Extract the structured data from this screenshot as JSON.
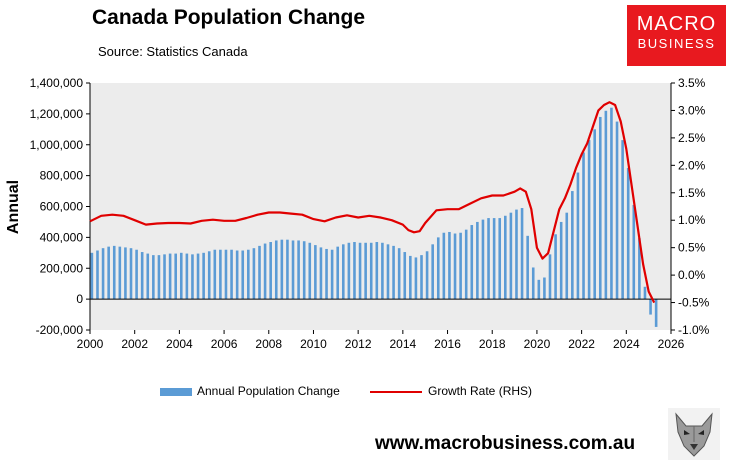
{
  "title": "Canada Population Change",
  "source": "Source: Statistics Canada",
  "logo": {
    "line1": "MACRO",
    "line2": "BUSINESS",
    "color": "#e8191f"
  },
  "website": "www.macrobusiness.com.au",
  "chart_data": {
    "type": "bar",
    "title": "Canada Population Change",
    "ylabel": "Annual",
    "y2label": "",
    "ylim": [
      -200000,
      1400000
    ],
    "y2lim": [
      -1.0,
      3.5
    ],
    "yticks": [
      "-200,000",
      "0",
      "200,000",
      "400,000",
      "600,000",
      "800,000",
      "1,000,000",
      "1,200,000",
      "1,400,000"
    ],
    "y2ticks": [
      "-1.0%",
      "-0.5%",
      "0.0%",
      "0.5%",
      "1.0%",
      "1.5%",
      "2.0%",
      "2.5%",
      "3.0%",
      "3.5%"
    ],
    "xlim": [
      2000,
      2026
    ],
    "xticks": [
      "2000",
      "2002",
      "2004",
      "2006",
      "2008",
      "2010",
      "2012",
      "2014",
      "2016",
      "2018",
      "2020",
      "2022",
      "2024",
      "2026"
    ],
    "grid": false,
    "legend_position": "bottom",
    "colors": {
      "bar": "#5b9bd5",
      "line": "#e00000",
      "plot_bg": "#ececec"
    },
    "series": [
      {
        "name": "Annual Population Change",
        "type": "bar",
        "x": [
          2000.0,
          2000.25,
          2000.5,
          2000.75,
          2001.0,
          2001.25,
          2001.5,
          2001.75,
          2002.0,
          2002.25,
          2002.5,
          2002.75,
          2003.0,
          2003.25,
          2003.5,
          2003.75,
          2004.0,
          2004.25,
          2004.5,
          2004.75,
          2005.0,
          2005.25,
          2005.5,
          2005.75,
          2006.0,
          2006.25,
          2006.5,
          2006.75,
          2007.0,
          2007.25,
          2007.5,
          2007.75,
          2008.0,
          2008.25,
          2008.5,
          2008.75,
          2009.0,
          2009.25,
          2009.5,
          2009.75,
          2010.0,
          2010.25,
          2010.5,
          2010.75,
          2011.0,
          2011.25,
          2011.5,
          2011.75,
          2012.0,
          2012.25,
          2012.5,
          2012.75,
          2013.0,
          2013.25,
          2013.5,
          2013.75,
          2014.0,
          2014.25,
          2014.5,
          2014.75,
          2015.0,
          2015.25,
          2015.5,
          2015.75,
          2016.0,
          2016.25,
          2016.5,
          2016.75,
          2017.0,
          2017.25,
          2017.5,
          2017.75,
          2018.0,
          2018.25,
          2018.5,
          2018.75,
          2019.0,
          2019.25,
          2019.5,
          2019.75,
          2020.0,
          2020.25,
          2020.5,
          2020.75,
          2021.0,
          2021.25,
          2021.5,
          2021.75,
          2022.0,
          2022.25,
          2022.5,
          2022.75,
          2023.0,
          2023.25,
          2023.5,
          2023.75,
          2024.0,
          2024.25,
          2024.5,
          2024.75,
          2025.0,
          2025.25
        ],
        "values": [
          300000,
          315000,
          330000,
          340000,
          345000,
          340000,
          335000,
          330000,
          320000,
          305000,
          295000,
          285000,
          285000,
          290000,
          295000,
          295000,
          300000,
          295000,
          290000,
          295000,
          300000,
          310000,
          320000,
          320000,
          320000,
          320000,
          315000,
          315000,
          320000,
          330000,
          345000,
          360000,
          370000,
          380000,
          385000,
          385000,
          380000,
          380000,
          375000,
          365000,
          350000,
          335000,
          325000,
          320000,
          340000,
          355000,
          365000,
          370000,
          365000,
          365000,
          365000,
          370000,
          365000,
          355000,
          345000,
          330000,
          305000,
          280000,
          270000,
          285000,
          310000,
          355000,
          400000,
          430000,
          435000,
          425000,
          430000,
          450000,
          480000,
          500000,
          515000,
          525000,
          525000,
          525000,
          540000,
          560000,
          580000,
          590000,
          410000,
          205000,
          125000,
          140000,
          290000,
          420000,
          500000,
          560000,
          700000,
          820000,
          950000,
          1030000,
          1100000,
          1180000,
          1220000,
          1240000,
          1150000,
          1030000,
          850000,
          610000,
          395000,
          80000,
          -100000,
          -180000
        ]
      },
      {
        "name": "Growth Rate (RHS)",
        "type": "line",
        "x": [
          2000.0,
          2000.5,
          2001.0,
          2001.5,
          2002.0,
          2002.5,
          2003.0,
          2003.5,
          2004.0,
          2004.5,
          2005.0,
          2005.5,
          2006.0,
          2006.5,
          2007.0,
          2007.5,
          2008.0,
          2008.5,
          2009.0,
          2009.5,
          2010.0,
          2010.5,
          2011.0,
          2011.5,
          2012.0,
          2012.5,
          2013.0,
          2013.5,
          2014.0,
          2014.25,
          2014.5,
          2014.75,
          2015.0,
          2015.5,
          2016.0,
          2016.5,
          2017.0,
          2017.5,
          2018.0,
          2018.5,
          2019.0,
          2019.25,
          2019.5,
          2019.75,
          2020.0,
          2020.25,
          2020.5,
          2020.75,
          2021.0,
          2021.25,
          2021.5,
          2021.75,
          2022.0,
          2022.25,
          2022.5,
          2022.75,
          2023.0,
          2023.25,
          2023.5,
          2023.75,
          2024.0,
          2024.25,
          2024.5,
          2024.75,
          2025.0,
          2025.25
        ],
        "values": [
          0.98,
          1.08,
          1.1,
          1.08,
          1.0,
          0.92,
          0.94,
          0.95,
          0.95,
          0.94,
          0.99,
          1.01,
          0.99,
          0.99,
          1.04,
          1.1,
          1.14,
          1.14,
          1.12,
          1.1,
          1.02,
          0.98,
          1.05,
          1.09,
          1.05,
          1.08,
          1.05,
          1.0,
          0.92,
          0.82,
          0.78,
          0.8,
          0.95,
          1.18,
          1.2,
          1.2,
          1.3,
          1.4,
          1.45,
          1.45,
          1.52,
          1.58,
          1.52,
          1.2,
          0.5,
          0.3,
          0.4,
          0.8,
          1.2,
          1.4,
          1.65,
          1.95,
          2.2,
          2.4,
          2.7,
          3.0,
          3.1,
          3.15,
          3.1,
          2.8,
          2.3,
          1.6,
          0.9,
          0.2,
          -0.3,
          -0.5
        ]
      }
    ]
  }
}
